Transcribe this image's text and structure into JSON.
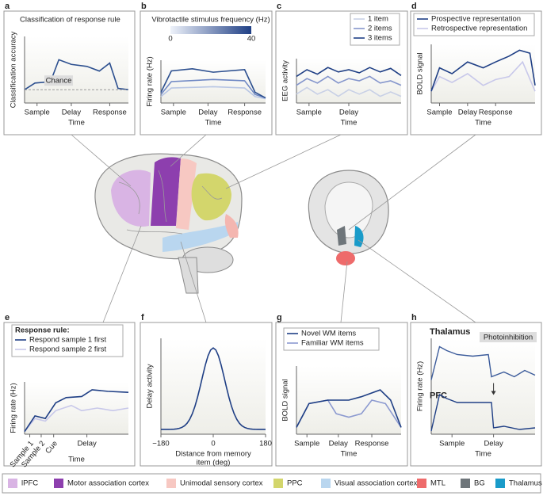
{
  "panels": [
    {
      "label": "a",
      "title": "Classification of response rule",
      "y_label": "Classification accuracy",
      "x_label": "Time",
      "x_ticks": [
        "Sample",
        "Delay",
        "Response"
      ],
      "annotation": "Chance"
    },
    {
      "label": "b",
      "colorbar_title": "Vibrotactile stimulus frequency (Hz)",
      "colorbar_ticks": [
        "0",
        "40"
      ],
      "y_label": "Firing rate (Hz)",
      "x_label": "Time",
      "x_ticks": [
        "Sample",
        "Delay",
        "Response"
      ]
    },
    {
      "label": "c",
      "legend": [
        "1 item",
        "2 items",
        "3 items"
      ],
      "y_label": "EEG activity",
      "x_label": "Time",
      "x_ticks": [
        "Sample",
        "Delay"
      ]
    },
    {
      "label": "d",
      "legend": [
        "Prospective representation",
        "Retrospective representation"
      ],
      "y_label": "BOLD signal",
      "x_label": "Time",
      "x_ticks": [
        "Sample",
        "Delay",
        "Response"
      ]
    },
    {
      "label": "e",
      "legend_title": "Response rule:",
      "legend": [
        "Respond sample 1 first",
        "Respond sample 2 first"
      ],
      "y_label": "Firing rate (Hz)",
      "x_label": "Time",
      "x_ticks": [
        "Sample 1",
        "Sample 2",
        "Cue",
        "Delay"
      ]
    },
    {
      "label": "f",
      "y_label": "Delay activity",
      "x_label_lines": [
        "Distance from memory",
        "item (deg)"
      ],
      "x_ticks": [
        "−180",
        "0",
        "180"
      ]
    },
    {
      "label": "g",
      "legend": [
        "Novel WM items",
        "Familiar WM items"
      ],
      "y_label": "BOLD signal",
      "x_label": "Time",
      "x_ticks": [
        "Sample",
        "Delay",
        "Response"
      ]
    },
    {
      "label": "h",
      "titles": [
        "Thalamus",
        "PFC"
      ],
      "annotation": "Photoinhibition",
      "y_label": "Firing rate (Hz)",
      "x_label": "Time",
      "x_ticks": [
        "Sample",
        "Delay"
      ]
    }
  ],
  "legend": [
    {
      "name": "lPFC",
      "color": "#d9b4e4"
    },
    {
      "name": "Motor association cortex",
      "color": "#8d3fae"
    },
    {
      "name": "Unimodal sensory cortex",
      "color": "#f7c8c2"
    },
    {
      "name": "PPC",
      "color": "#d3d66c"
    },
    {
      "name": "Visual association cortex",
      "color": "#b9d6ef"
    },
    {
      "name": "MTL",
      "color": "#ee6b6b"
    },
    {
      "name": "BG",
      "color": "#6e757a"
    },
    {
      "name": "Thalamus",
      "color": "#1a9bc9"
    }
  ]
}
